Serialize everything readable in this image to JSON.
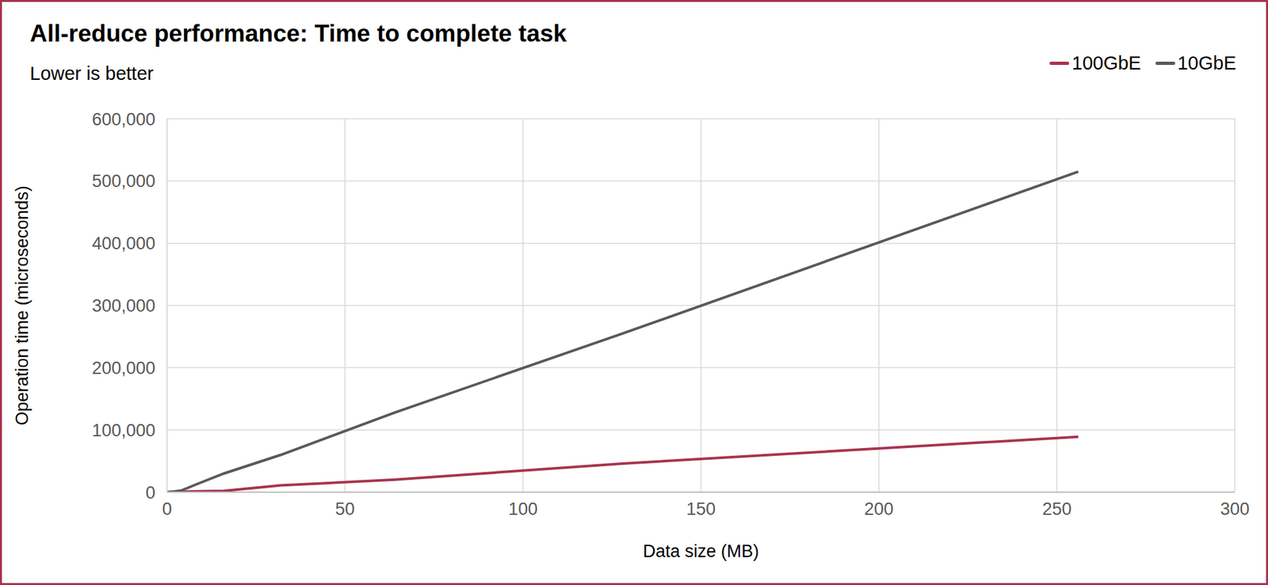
{
  "chart_data": {
    "type": "line",
    "title": "All-reduce performance: Time to complete task",
    "subtitle": "Lower is better",
    "x_label": "Data size (MB)",
    "y_label": "Operation time (microseconds)",
    "x": [
      0,
      1,
      2,
      4,
      8,
      16,
      32,
      64,
      128,
      256
    ],
    "series": [
      {
        "name": "100GbE",
        "color": "#a8344e",
        "values": [
          100,
          200,
          300,
          600,
          1200,
          2000,
          11000,
          20000,
          46000,
          89000
        ]
      },
      {
        "name": "10GbE",
        "color": "#595959",
        "values": [
          100,
          500,
          1000,
          2500,
          12000,
          30000,
          60000,
          128000,
          255000,
          515000
        ]
      }
    ],
    "xlim": [
      0,
      300
    ],
    "xticks": [
      0,
      50,
      100,
      150,
      200,
      250,
      300
    ],
    "ylim": [
      0,
      600000
    ],
    "yticks": [
      0,
      {
        "value": 100000,
        "label": "100,000"
      },
      {
        "value": 200000,
        "label": "200,000"
      },
      {
        "value": 300000,
        "label": "300,000"
      },
      {
        "value": 400000,
        "label": "400,000"
      },
      {
        "value": 500000,
        "label": "500,000"
      },
      {
        "value": 600000,
        "label": "600,000"
      }
    ],
    "grid": true,
    "legend": "top-right"
  }
}
